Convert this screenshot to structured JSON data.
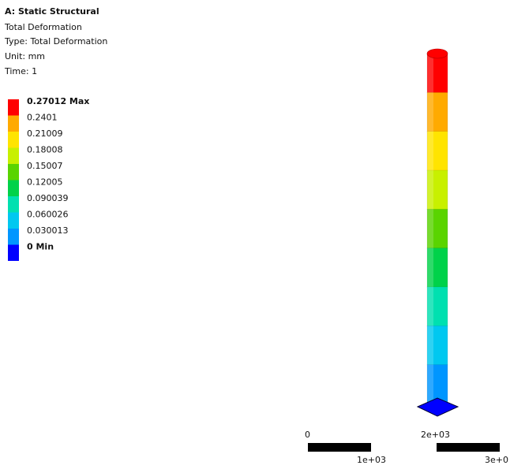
{
  "header": {
    "title": "A: Static Structural",
    "lines": [
      "Total Deformation",
      "Type: Total Deformation",
      "Unit: mm",
      "Time: 1"
    ]
  },
  "legend": [
    {
      "label": "0.27012 Max",
      "color": "#ff0000"
    },
    {
      "label": "0.2401",
      "color": "#ffaa00"
    },
    {
      "label": "0.21009",
      "color": "#ffe400"
    },
    {
      "label": "0.18008",
      "color": "#c8f000"
    },
    {
      "label": "0.15007",
      "color": "#5ad400"
    },
    {
      "label": "0.12005",
      "color": "#00d24a"
    },
    {
      "label": "0.090039",
      "color": "#00e0b0"
    },
    {
      "label": "0.060026",
      "color": "#00c8f0"
    },
    {
      "label": "0.030013",
      "color": "#0096ff"
    },
    {
      "label": "0 Min",
      "color": "#0000ff"
    }
  ],
  "scale": {
    "top": [
      "0",
      "2e+03"
    ],
    "bottom": [
      "1e+03",
      "3e+0"
    ]
  }
}
